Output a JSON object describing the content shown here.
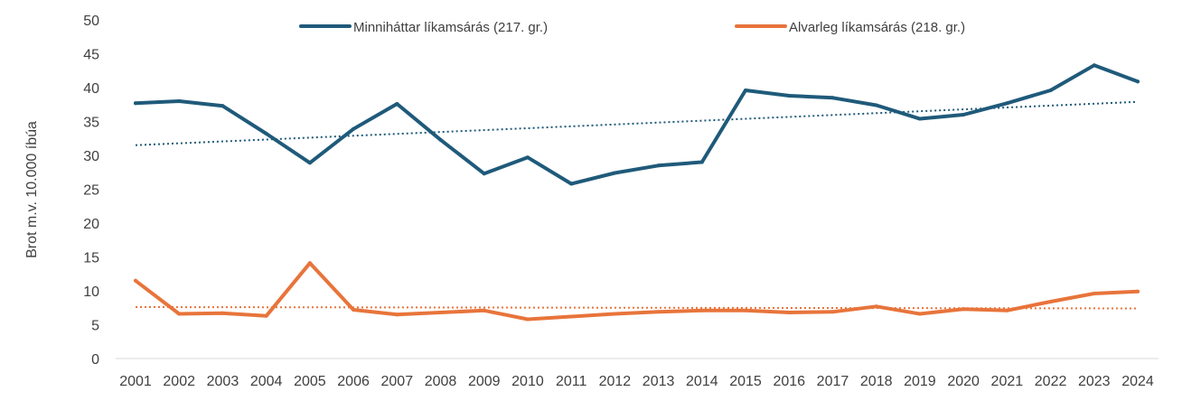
{
  "chart_data": {
    "type": "line",
    "ylabel": "Brot m.v. 10.000 íbúa",
    "ylim": [
      0,
      50
    ],
    "yticks": [
      0,
      5,
      10,
      15,
      20,
      25,
      30,
      35,
      40,
      45,
      50
    ],
    "grid": false,
    "legend_position": "top",
    "categories": [
      "2001",
      "2002",
      "2003",
      "2004",
      "2005",
      "2006",
      "2007",
      "2008",
      "2009",
      "2010",
      "2011",
      "2012",
      "2013",
      "2014",
      "2015",
      "2016",
      "2017",
      "2018",
      "2019",
      "2020",
      "2021",
      "2022",
      "2023",
      "2024"
    ],
    "series": [
      {
        "name": "Minniháttar líkamsárás (217. gr.)",
        "color": "#1f5a7a",
        "values": [
          37.7,
          38.0,
          37.3,
          33.2,
          28.9,
          33.9,
          37.6,
          32.3,
          27.3,
          29.7,
          25.8,
          27.4,
          28.5,
          29.0,
          39.6,
          38.8,
          38.5,
          37.4,
          35.4,
          36.0,
          37.7,
          39.6,
          43.3,
          40.9
        ],
        "trend": [
          31.5,
          37.9
        ]
      },
      {
        "name": "Alvarleg líkamsárás (218. gr.)",
        "color": "#e8743b",
        "values": [
          11.5,
          6.6,
          6.7,
          6.3,
          14.1,
          7.2,
          6.5,
          6.8,
          7.1,
          5.8,
          6.2,
          6.6,
          6.9,
          7.1,
          7.1,
          6.8,
          6.9,
          7.7,
          6.6,
          7.3,
          7.1,
          8.4,
          9.6,
          9.9
        ],
        "trend": [
          7.6,
          7.4
        ]
      }
    ]
  }
}
